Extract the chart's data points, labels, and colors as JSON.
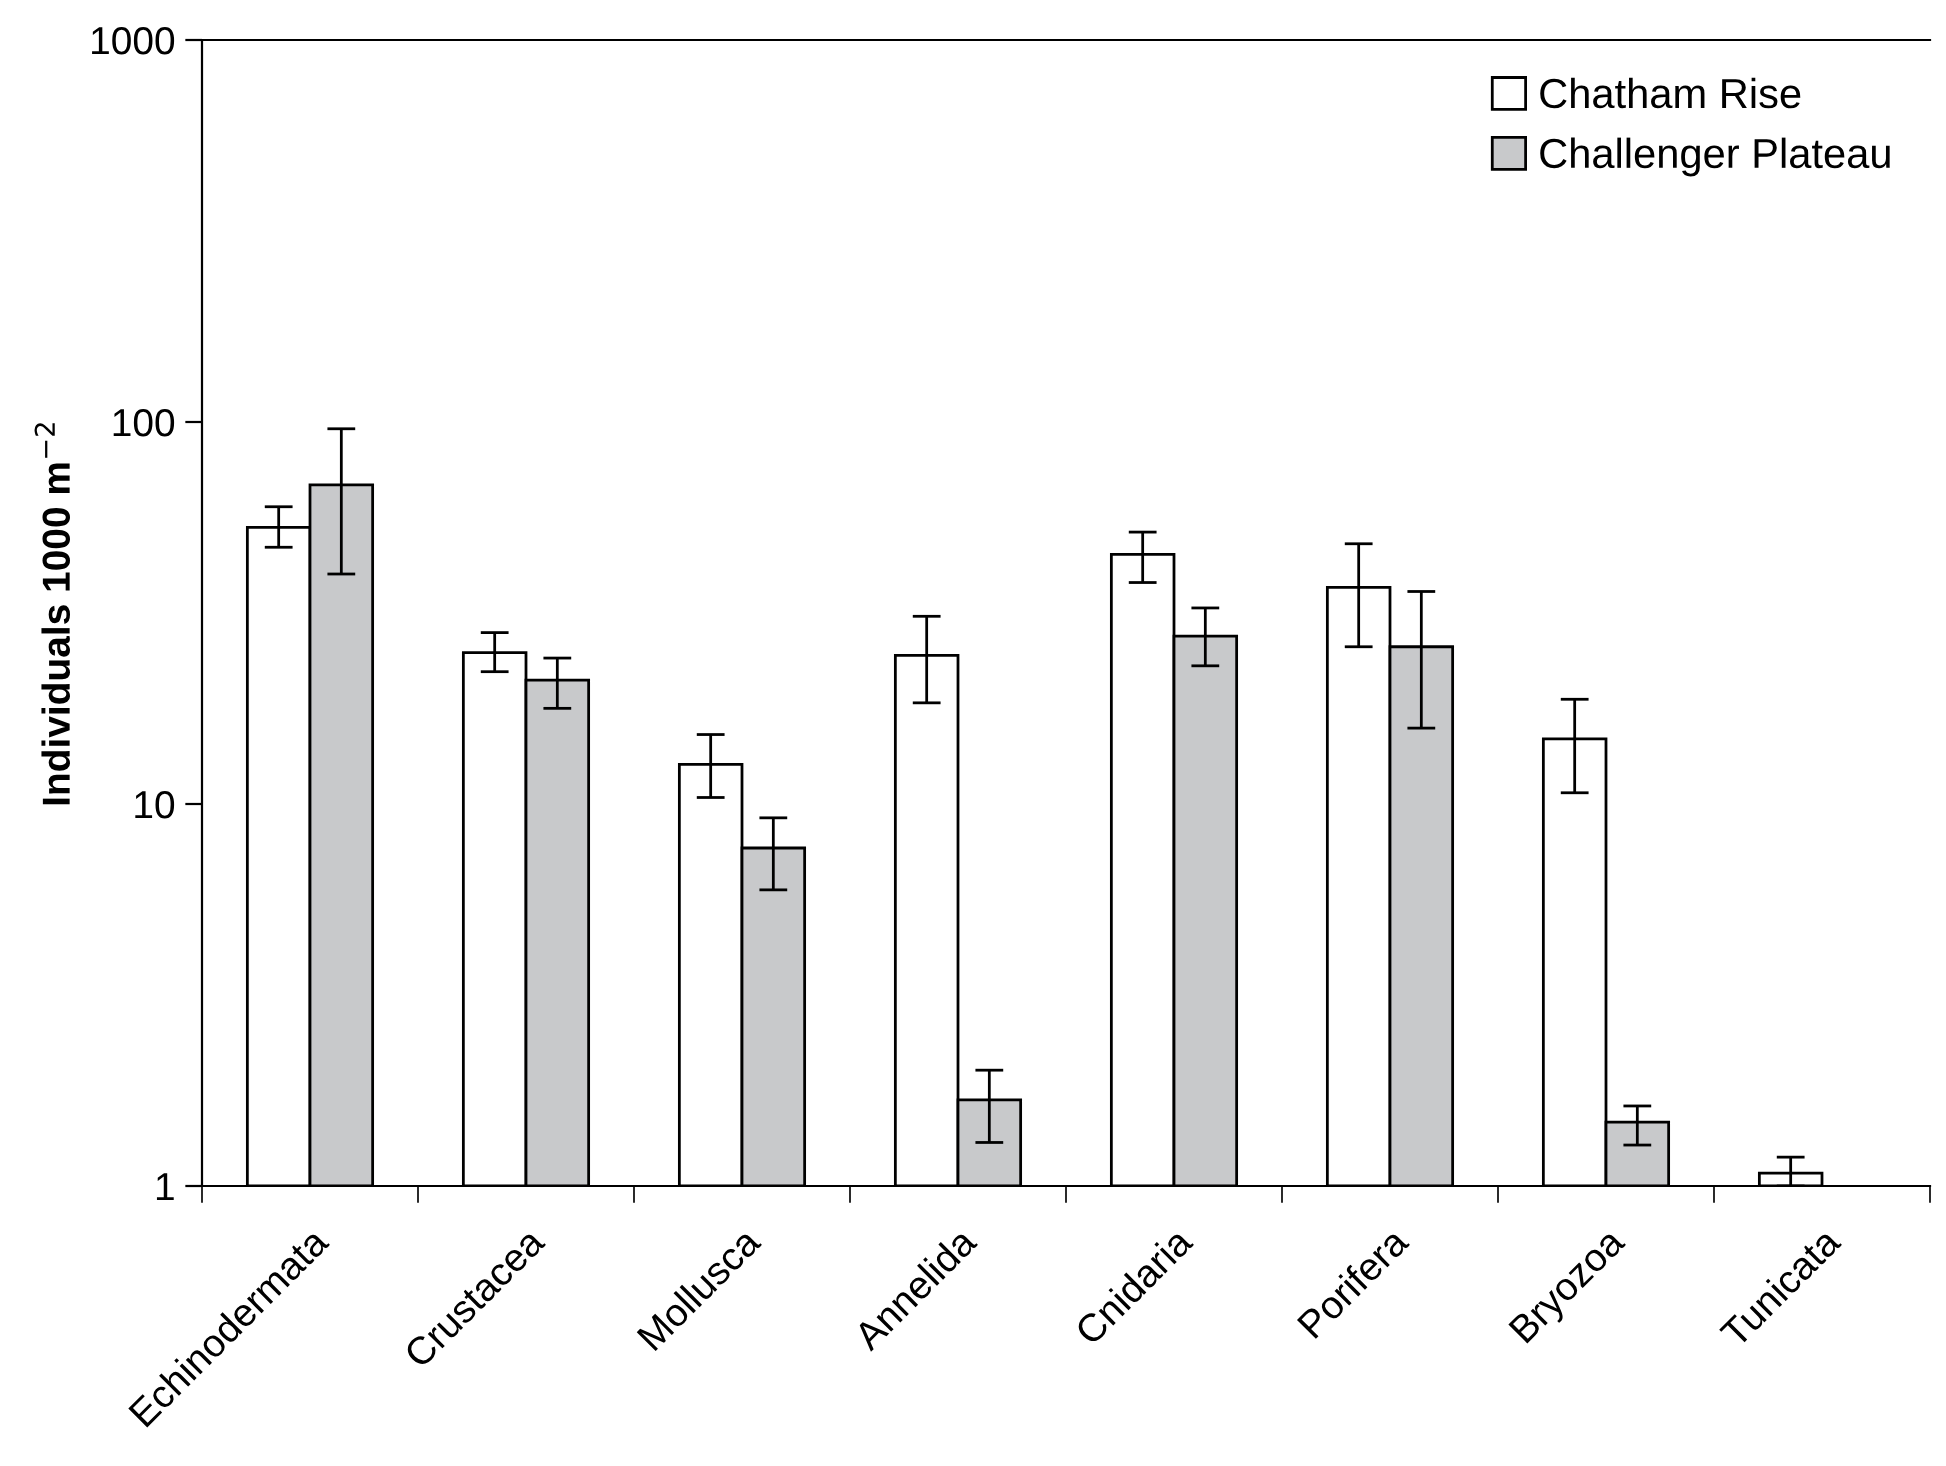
{
  "chart_data": {
    "type": "bar",
    "ylabel": "Individuals 1000 m$^{−2}$",
    "categories": [
      "Echinodermata",
      "Crustacea",
      "Mollusca",
      "Annelida",
      "Cnidaria",
      "Porifera",
      "Bryozoa",
      "Tunicata"
    ],
    "series": [
      {
        "name": "Chatham Rise",
        "color": "#ffffff",
        "values": [
          53,
          24.9,
          12.7,
          24.5,
          45,
          36.9,
          14.8,
          1.08
        ],
        "errors": [
          [
            47,
            60
          ],
          [
            22.2,
            28.1
          ],
          [
            10.4,
            15.2
          ],
          [
            18.4,
            31
          ],
          [
            38,
            51.5
          ],
          [
            25.8,
            48
          ],
          [
            10.7,
            18.8
          ],
          [
            1.0,
            1.19
          ]
        ]
      },
      {
        "name": "Challenger Plateau",
        "color": "#c8c9cb",
        "values": [
          68.5,
          21.1,
          7.67,
          1.68,
          27.5,
          25.8,
          1.47,
          null
        ],
        "errors": [
          [
            40,
            96
          ],
          [
            17.8,
            24.1
          ],
          [
            5.96,
            9.2
          ],
          [
            1.3,
            2.01
          ],
          [
            23,
            32.6
          ],
          [
            15.8,
            36
          ],
          [
            1.28,
            1.62
          ],
          null
        ]
      }
    ],
    "log": "y",
    "ylim": [
      1,
      1000
    ],
    "yticks": [
      1,
      10,
      100,
      1000
    ],
    "grid": false,
    "legend": "top right"
  }
}
